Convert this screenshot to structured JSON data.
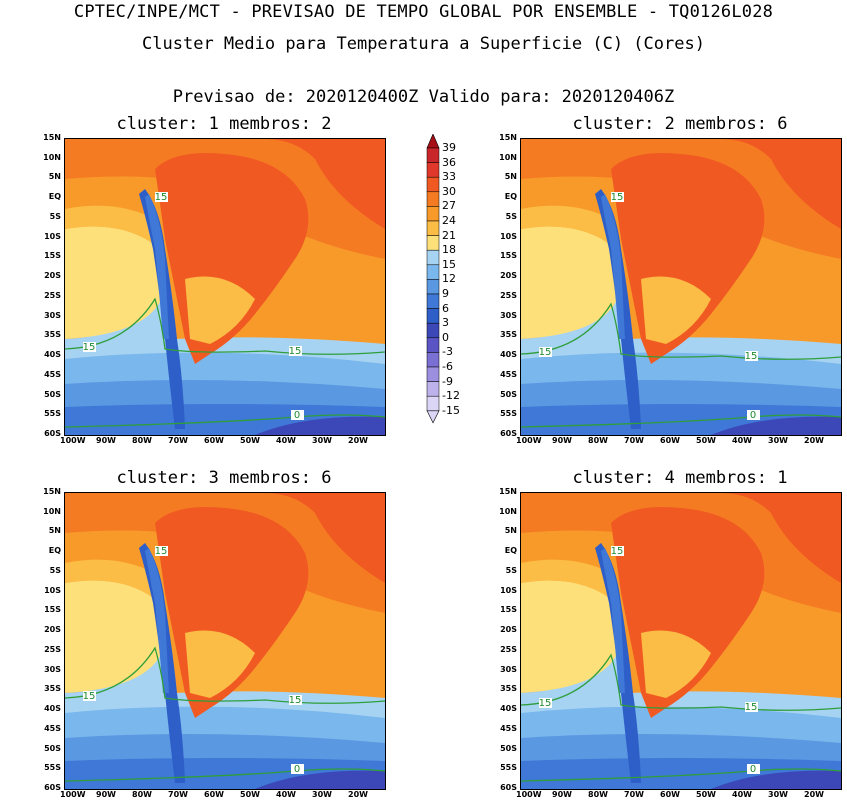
{
  "header": {
    "title_line1": "CPTEC/INPE/MCT - PREVISAO DE TEMPO GLOBAL POR ENSEMBLE - TQ0126L028",
    "title_line2": "Cluster Medio para Temperatura a Superficie (C) (Cores)",
    "forecast_line": "Previsao de: 2020120400Z   Valido para: 2020120406Z"
  },
  "panels": [
    {
      "title": "cluster: 1  membros: 2"
    },
    {
      "title": "cluster: 2  membros: 6"
    },
    {
      "title": "cluster: 3  membros: 6"
    },
    {
      "title": "cluster: 4  membros: 1"
    }
  ],
  "axes": {
    "lat_labels": [
      "15N",
      "10N",
      "5N",
      "EQ",
      "5S",
      "10S",
      "15S",
      "20S",
      "25S",
      "30S",
      "35S",
      "40S",
      "45S",
      "50S",
      "55S",
      "60S"
    ],
    "lon_labels": [
      "100W",
      "90W",
      "80W",
      "70W",
      "60W",
      "50W",
      "40W",
      "30W",
      "20W"
    ]
  },
  "contour_labels": {
    "c15": "15",
    "c0": "0"
  },
  "colorbar": {
    "labels": [
      "39",
      "36",
      "33",
      "30",
      "27",
      "24",
      "21",
      "18",
      "15",
      "12",
      "9",
      "6",
      "3",
      "0",
      "-3",
      "-6",
      "-9",
      "-12",
      "-15"
    ],
    "colors": [
      "#a50f15",
      "#c8262b",
      "#e0392b",
      "#f05a22",
      "#f57b22",
      "#f89a2a",
      "#fbbd45",
      "#fde07a",
      "#a7d3f2",
      "#7ab7ec",
      "#5a98e2",
      "#3f78d6",
      "#2e5ec8",
      "#3d48b8",
      "#5a54c4",
      "#7a6fd2",
      "#9c8fe0",
      "#bdb2ec",
      "#dcd6f6"
    ]
  }
}
